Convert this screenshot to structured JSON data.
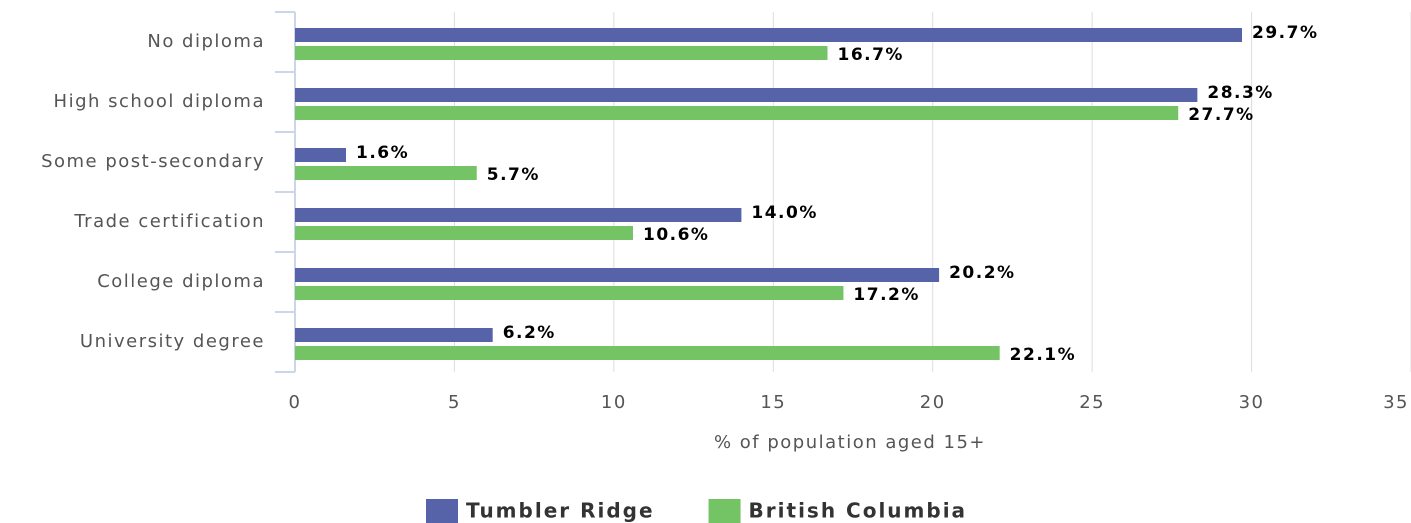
{
  "chart_data": {
    "type": "hbar",
    "categories": [
      "No diploma",
      "High school diploma",
      "Some post-secondary",
      "Trade certification",
      "College diploma",
      "University degree"
    ],
    "series": [
      {
        "name": "Tumbler Ridge",
        "color": "#5663a9",
        "values": [
          29.7,
          28.3,
          1.6,
          14.0,
          20.2,
          6.2
        ],
        "value_labels": [
          "29.7%",
          "28.3%",
          "1.6%",
          "14.0%",
          "20.2%",
          "6.2%"
        ]
      },
      {
        "name": "British Columbia",
        "color": "#74c365",
        "values": [
          16.7,
          27.7,
          5.7,
          10.6,
          17.2,
          22.1
        ],
        "value_labels": [
          "16.7%",
          "27.7%",
          "5.7%",
          "10.6%",
          "17.2%",
          "22.1%"
        ]
      }
    ],
    "xlabel": "% of population aged 15+",
    "xlim": [
      0,
      35
    ],
    "xticks": [
      0,
      5,
      10,
      15,
      20,
      25,
      30,
      35
    ],
    "grid": true,
    "legend": "bottom"
  }
}
